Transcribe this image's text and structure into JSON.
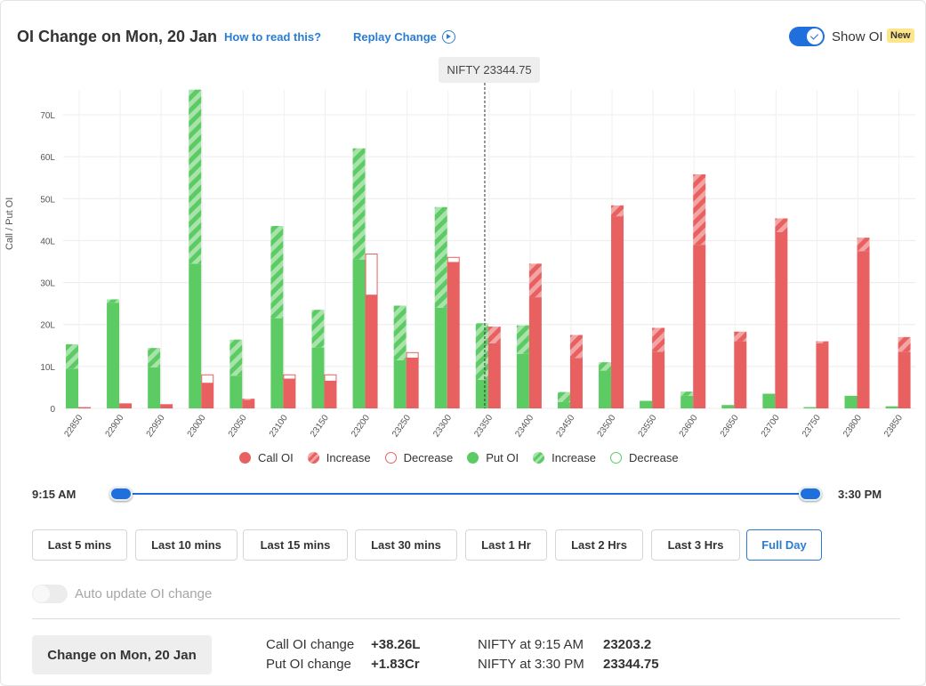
{
  "header": {
    "title": "OI Change on Mon, 20 Jan",
    "how_to_read": "How to read this?",
    "replay": "Replay Change",
    "show_oi": "Show OI",
    "badge": "New"
  },
  "spot_label": "NIFTY 23344.75",
  "colors": {
    "call": "#e96060",
    "call_light": "#f3a5a5",
    "put": "#5ccb63",
    "put_light": "#a8e3ac",
    "accent": "#1f6fdc"
  },
  "chart_data": {
    "type": "bar",
    "ylabel": "Call / Put OI",
    "ylim": [
      0,
      70
    ],
    "y_ticks": [
      "0",
      "10L",
      "20L",
      "30L",
      "40L",
      "50L",
      "60L",
      "70L"
    ],
    "spot": 23344.75,
    "categories": [
      "22850",
      "22900",
      "22950",
      "23000",
      "23050",
      "23100",
      "23150",
      "23200",
      "23250",
      "23300",
      "23350",
      "23400",
      "23450",
      "23500",
      "23550",
      "23600",
      "23650",
      "23700",
      "23750",
      "23800",
      "23850"
    ],
    "put_base": [
      9.5,
      25.2,
      9.8,
      34.5,
      7.8,
      21.5,
      14.5,
      35.5,
      11.5,
      24,
      6.8,
      13,
      1.5,
      9,
      1.8,
      3,
      0.8,
      3.5,
      0.3,
      3,
      0.5
    ],
    "put_increase": [
      5.8,
      0.8,
      4.6,
      41.5,
      8.6,
      22,
      9,
      26.5,
      13,
      24,
      13.5,
      6.8,
      2.4,
      2,
      0,
      1,
      0,
      0,
      0,
      0,
      0
    ],
    "put_decrease": [
      0,
      0,
      0,
      0,
      0,
      0,
      0,
      0,
      0,
      0,
      0,
      0,
      0,
      0,
      0,
      0,
      0,
      0,
      0,
      0,
      0
    ],
    "call_base": [
      0.3,
      1.2,
      1,
      6,
      2,
      7,
      6.5,
      27,
      12,
      34.8,
      15.5,
      26.5,
      12,
      45.8,
      13.5,
      39,
      16,
      42,
      15.5,
      37.5,
      13.5
    ],
    "call_increase": [
      0,
      0,
      0,
      0,
      0.3,
      0,
      0,
      0,
      0.3,
      0,
      4,
      8,
      5.5,
      2.6,
      5.7,
      16.8,
      2.3,
      3.3,
      0.5,
      3.2,
      3.5
    ],
    "call_decrease": [
      0,
      0,
      0,
      2,
      0,
      1,
      1.5,
      9.8,
      1.3,
      1.2,
      0,
      0,
      0,
      0,
      0,
      0,
      0,
      0,
      0,
      0,
      0
    ]
  },
  "legend": [
    {
      "label": "Call OI",
      "kind": "call-solid"
    },
    {
      "label": "Increase",
      "kind": "call-increase"
    },
    {
      "label": "Decrease",
      "kind": "call-decrease"
    },
    {
      "label": "Put OI",
      "kind": "put-solid"
    },
    {
      "label": "Increase",
      "kind": "put-increase"
    },
    {
      "label": "Decrease",
      "kind": "put-decrease"
    }
  ],
  "slider": {
    "start": "9:15 AM",
    "end": "3:30 PM"
  },
  "ranges": [
    "Last 5 mins",
    "Last 10 mins",
    "Last 15 mins",
    "Last 30 mins",
    "Last 1 Hr",
    "Last 2 Hrs",
    "Last 3 Hrs",
    "Full Day"
  ],
  "active_range": "Full Day",
  "auto_update": "Auto update OI change",
  "footer": {
    "change_button": "Change on Mon, 20 Jan",
    "call_label": "Call OI change",
    "call_value": "+38.26L",
    "put_label": "Put OI change",
    "put_value": "+1.83Cr",
    "nifty_start_label": "NIFTY at 9:15 AM",
    "nifty_start_value": "23203.2",
    "nifty_end_label": "NIFTY at 3:30 PM",
    "nifty_end_value": "23344.75"
  }
}
